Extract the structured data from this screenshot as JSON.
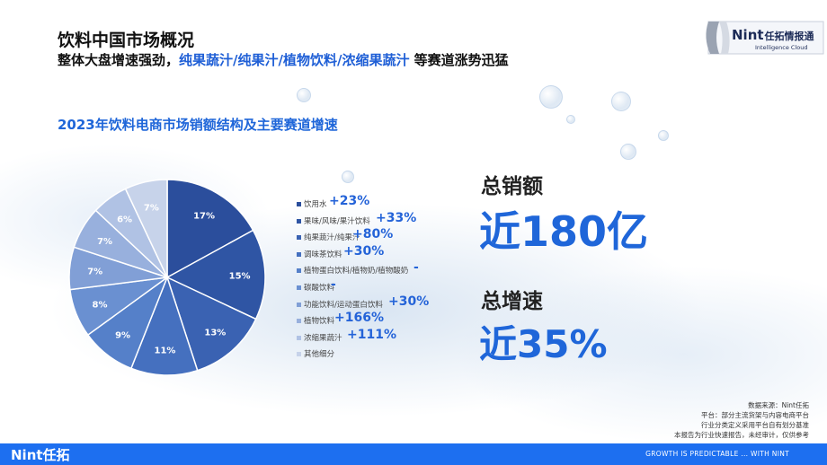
{
  "header": {
    "title": "饮料中国市场概况",
    "subtitle_prefix": "整体大盘增速强劲，",
    "subtitle_highlight": "纯果蔬汁/纯果汁/植物饮料/浓缩果蔬汁",
    "subtitle_suffix": " 等赛道涨势迅猛"
  },
  "logo": {
    "brand": "Nint",
    "brand_cn": "任拓情报通",
    "tagline": "Intelligence Cloud"
  },
  "chart_data": {
    "type": "pie",
    "title": "2023年饮料电商市场销额结构及主要赛道增速",
    "slices": [
      {
        "label": "饮用水",
        "value": 17,
        "value_label": "17%",
        "growth": "+23%",
        "color": "#2b4e9c"
      },
      {
        "label": "果味/风味/果汁饮料",
        "value": 15,
        "value_label": "15%",
        "growth": "+33%",
        "color": "#2f55a4"
      },
      {
        "label": "纯果蔬汁/纯果汁",
        "value": 13,
        "value_label": "13%",
        "growth": "+80%",
        "color": "#3a62b2"
      },
      {
        "label": "调味茶饮料",
        "value": 11,
        "value_label": "11%",
        "growth": "+30%",
        "color": "#4570bf"
      },
      {
        "label": "植物蛋白饮料/植物奶/植物酸奶",
        "value": 9,
        "value_label": "9%",
        "growth": "-",
        "color": "#5580c9"
      },
      {
        "label": "碳酸饮料",
        "value": 8,
        "value_label": "8%",
        "growth": "-",
        "color": "#6a90d1"
      },
      {
        "label": "功能饮料/运动蛋白饮料",
        "value": 7,
        "value_label": "7%",
        "growth": "+30%",
        "color": "#819fd6"
      },
      {
        "label": "植物饮料",
        "value": 7,
        "value_label": "7%",
        "growth": "+166%",
        "color": "#98b0dd"
      },
      {
        "label": "浓缩果蔬汁",
        "value": 6,
        "value_label": "6%",
        "growth": "+111%",
        "color": "#b0c2e4"
      },
      {
        "label": "其他细分",
        "value": 7,
        "value_label": "7%",
        "growth": "",
        "color": "#c7d3ea"
      }
    ]
  },
  "kpis": {
    "total_sales_label": "总销额",
    "total_sales_value": "近180亿",
    "total_growth_label": "总增速",
    "total_growth_value": "近35%"
  },
  "source": {
    "line1": "数据来源：Nint任拓",
    "line2": "平台：部分主流货架与内容电商平台",
    "line3": "行业分类定义采用平台自有划分基准",
    "line4": "本报告为行业快速报告，未经审计，仅供参考"
  },
  "footer": {
    "logo": "Nint任拓",
    "slogan": "GROWTH IS PREDICTABLE ... WITH NINT"
  }
}
